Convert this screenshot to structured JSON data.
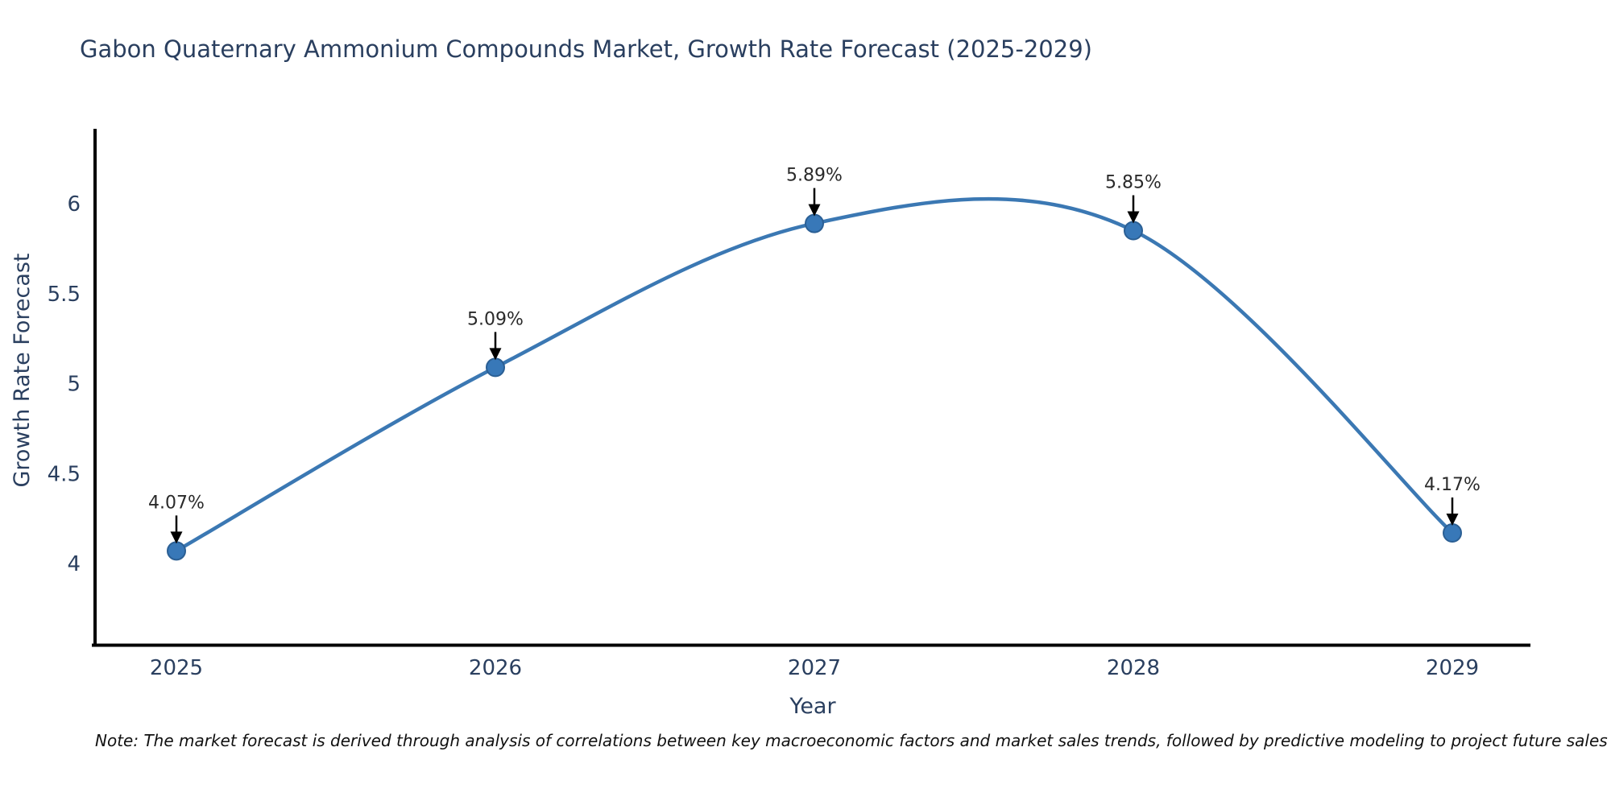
{
  "title": "Gabon Quaternary Ammonium Compounds Market, Growth Rate Forecast (2025-2029)",
  "note": "Note: The market forecast is derived through analysis of correlations between key macroeconomic factors and market sales trends, followed by predictive modeling to project future sales",
  "chart_data": {
    "type": "line",
    "line_shape": "spline",
    "categories": [
      "2025",
      "2026",
      "2027",
      "2028",
      "2029"
    ],
    "values": [
      4.07,
      5.09,
      5.89,
      5.85,
      4.17
    ],
    "point_labels": [
      "4.07%",
      "5.09%",
      "5.89%",
      "5.85%",
      "4.17%"
    ],
    "title": "Gabon Quaternary Ammonium Compounds Market, Growth Rate Forecast (2025-2029)",
    "xlabel": "Year",
    "ylabel": "Growth Rate Forecast",
    "yticks": [
      4,
      4.5,
      5,
      5.5,
      6
    ],
    "ylim": [
      3.54,
      6.42
    ],
    "grid": false,
    "legend": "none",
    "annotations_have_arrows": true,
    "colors": {
      "line": "#3b78b3",
      "marker_fill": "#3878b8",
      "marker_edge": "#2b5f94",
      "axis_line": "#000000",
      "tick_text": "#2a3f5f",
      "title_text": "#2a3f5f",
      "annotation_text": "#2a2a2a",
      "arrow": "#000000",
      "background": "#ffffff"
    }
  }
}
